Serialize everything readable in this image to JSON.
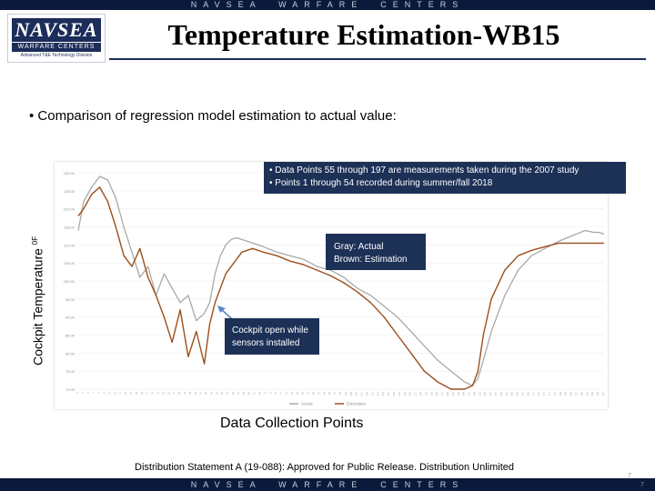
{
  "banner": {
    "top_text": "NAVSEA  WARFARE  CENTERS",
    "bottom_text": "NAVSEA  WARFARE  CENTERS"
  },
  "logo": {
    "name": "NAVSEA",
    "subtitle": "WARFARE CENTERS",
    "tagline": "Advanced T&E Technology Division"
  },
  "title": "Temperature Estimation-WB15",
  "bullet": "• Comparison of regression model estimation to actual value:",
  "yaxis_label": "Cockpit Temperature",
  "yaxis_unit": "0F",
  "notes": {
    "top": [
      "•   Data Points 55 through 197 are measurements taken during the 2007 study",
      "•   Points 1 through 54 recorded during summer/fall 2018"
    ],
    "mid": [
      "Gray: Actual",
      "Brown: Estimation"
    ],
    "low": [
      "Cockpit open while",
      "sensors installed"
    ]
  },
  "xaxis_label": "Data Collection Points",
  "footer": "Distribution Statement A (19-088): Approved for Public Release. Distribution Unlimited",
  "page": {
    "number_top": "7",
    "number_bottom": "7"
  },
  "colors": {
    "actual": "#a9a9a9",
    "estimation": "#9c4f1c",
    "navy": "#1d3157",
    "arrow": "#5b86c6"
  },
  "chart_data": {
    "type": "line",
    "title": "",
    "xlabel": "Data Collection Points",
    "ylabel": "Cockpit Temperature 0F",
    "ylim": [
      70,
      130
    ],
    "xlim": [
      1,
      197
    ],
    "y_ticks": [
      "130.00",
      "125.00",
      "120.00",
      "115.00",
      "110.00",
      "105.00",
      "100.00",
      "95.00",
      "90.00",
      "85.00",
      "80.00",
      "75.00",
      "70.00"
    ],
    "y_tick_values": [
      130,
      125,
      120,
      115,
      110,
      105,
      100,
      95,
      90,
      85,
      80,
      75,
      70
    ],
    "legend": [
      "Actual",
      "Estimation"
    ],
    "legend_position": "bottom-center",
    "series": [
      {
        "name": "Actual",
        "x": [
          1,
          3,
          6,
          9,
          12,
          15,
          18,
          21,
          24,
          27,
          30,
          33,
          36,
          39,
          42,
          45,
          48,
          50,
          52,
          54,
          56,
          58,
          60,
          62,
          64,
          66,
          68,
          70,
          75,
          80,
          85,
          90,
          95,
          100,
          105,
          110,
          115,
          120,
          125,
          130,
          135,
          140,
          145,
          148,
          150,
          152,
          155,
          160,
          165,
          170,
          175,
          180,
          185,
          190,
          193,
          195,
          197
        ],
        "y": [
          114,
          122,
          126,
          129,
          128,
          123,
          115,
          108,
          101,
          104,
          96,
          102,
          98,
          94,
          96,
          89,
          91,
          94,
          102,
          107,
          110,
          111.5,
          112,
          111.5,
          111,
          110.5,
          110,
          109.5,
          108,
          107,
          106,
          104,
          103,
          101,
          98,
          96,
          93,
          90,
          86,
          82,
          78,
          75,
          72,
          71,
          73,
          78,
          86,
          96,
          103,
          107,
          109,
          111,
          112.5,
          114,
          113.5,
          113.5,
          113
        ]
      },
      {
        "name": "Estimation",
        "x": [
          1,
          3,
          6,
          9,
          12,
          15,
          18,
          21,
          24,
          27,
          30,
          33,
          36,
          39,
          42,
          45,
          48,
          50,
          52,
          54,
          56,
          58,
          60,
          62,
          64,
          66,
          68,
          70,
          75,
          80,
          85,
          90,
          95,
          100,
          105,
          110,
          115,
          120,
          125,
          130,
          135,
          140,
          145,
          148,
          150,
          152,
          155,
          160,
          165,
          170,
          175,
          180,
          185,
          190,
          193,
          195,
          197
        ],
        "y": [
          118,
          120,
          124,
          126,
          122,
          115,
          107,
          104,
          109,
          101,
          96,
          90,
          83,
          92,
          79,
          86,
          77,
          88,
          94,
          98,
          102,
          104,
          106,
          108,
          108.5,
          109,
          108.5,
          108,
          107,
          105.5,
          104.5,
          103,
          101.5,
          99.5,
          97,
          94,
          90,
          85,
          80,
          75,
          72,
          70,
          70,
          71,
          75,
          85,
          95,
          103,
          107,
          108.5,
          109.5,
          110.5,
          110.5,
          110.5,
          110.5,
          110.5,
          110.5
        ]
      }
    ]
  }
}
